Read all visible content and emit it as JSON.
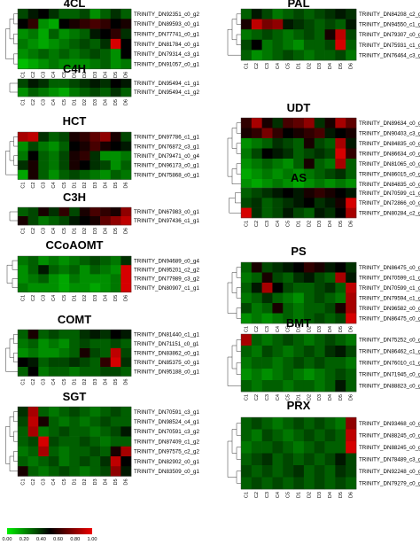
{
  "chart_data": {
    "type": "heatmap",
    "columns": [
      "C1",
      "C2",
      "C3",
      "C4",
      "C5",
      "D1",
      "D2",
      "D3",
      "D4",
      "D5",
      "D6"
    ],
    "scale": {
      "min": 0.0,
      "max": 1.0,
      "ticks": [
        "0.00",
        "0.20",
        "0.40",
        "0.60",
        "0.80",
        "1.00"
      ],
      "colors": [
        "#00ee00",
        "#000000",
        "#ee0000"
      ]
    },
    "panels": [
      {
        "title": "4CL",
        "rows": [
          "TRINITY_DN92351_c0_g2",
          "TRINITY_DN89593_c0_g1",
          "TRINITY_DN77741_c0_g1",
          "TRINITY_DN81784_c0_g1",
          "TRINITY_DN79314_c3_g1",
          "TRINITY_DN91057_c0_g1"
        ],
        "values": [
          [
            0.35,
            0.45,
            0.5,
            0.4,
            0.3,
            0.3,
            0.35,
            0.2,
            0.3,
            0.4,
            0.3
          ],
          [
            0.5,
            0.6,
            0.2,
            0.15,
            0.5,
            0.55,
            0.6,
            0.65,
            0.6,
            0.5,
            0.55
          ],
          [
            0.2,
            0.25,
            0.15,
            0.3,
            0.2,
            0.25,
            0.3,
            0.45,
            0.5,
            0.6,
            0.4
          ],
          [
            0.25,
            0.2,
            0.15,
            0.2,
            0.25,
            0.3,
            0.35,
            0.3,
            0.4,
            0.95,
            0.5
          ],
          [
            0.2,
            0.25,
            0.3,
            0.25,
            0.3,
            0.25,
            0.3,
            0.35,
            0.3,
            0.2,
            0.5
          ],
          [
            0.1,
            0.15,
            0.2,
            0.25,
            0.2,
            0.2,
            0.2,
            0.25,
            0.3,
            0.2,
            0.25
          ]
        ]
      },
      {
        "title": "C4H",
        "rows": [
          "TRINITY_DN95494_c1_g1",
          "TRINITY_DN95494_c1_g2"
        ],
        "values": [
          [
            0.35,
            0.45,
            0.4,
            0.3,
            0.3,
            0.35,
            0.4,
            0.45,
            0.4,
            0.5,
            0.45
          ],
          [
            0.2,
            0.3,
            0.25,
            0.2,
            0.15,
            0.25,
            0.3,
            0.35,
            0.3,
            0.4,
            0.3
          ]
        ]
      },
      {
        "title": "HCT",
        "rows": [
          "TRINITY_DN97786_c1_g1",
          "TRINITY_DN76872_c3_g1",
          "TRINITY_DN79471_c0_g4",
          "TRINITY_DN96173_c0_g1",
          "TRINITY_DN75868_c0_g1"
        ],
        "values": [
          [
            0.85,
            0.9,
            0.4,
            0.3,
            0.35,
            0.55,
            0.6,
            0.7,
            0.8,
            0.55,
            0.35
          ],
          [
            0.2,
            0.35,
            0.25,
            0.2,
            0.3,
            0.5,
            0.55,
            0.65,
            0.55,
            0.5,
            0.45
          ],
          [
            0.25,
            0.5,
            0.3,
            0.25,
            0.35,
            0.55,
            0.6,
            0.4,
            0.2,
            0.2,
            0.25
          ],
          [
            0.4,
            0.55,
            0.3,
            0.25,
            0.35,
            0.55,
            0.5,
            0.4,
            0.35,
            0.2,
            0.3
          ],
          [
            0.15,
            0.55,
            0.3,
            0.2,
            0.3,
            0.35,
            0.3,
            0.25,
            0.2,
            0.3,
            0.25
          ]
        ]
      },
      {
        "title": "C3H",
        "rows": [
          "TRINITY_DN67983_c0_g1",
          "TRINITY_DN97436_c1_g1"
        ],
        "values": [
          [
            0.3,
            0.35,
            0.55,
            0.4,
            0.6,
            0.35,
            0.55,
            0.65,
            0.6,
            0.55,
            0.8
          ],
          [
            0.55,
            0.35,
            0.25,
            0.3,
            0.35,
            0.45,
            0.5,
            0.55,
            0.7,
            0.8,
            0.9
          ]
        ]
      },
      {
        "title": "CCoAOMT",
        "rows": [
          "TRINITY_DN94689_c0_g4",
          "TRINITY_DN95201_c2_g2",
          "TRINITY_DN77989_c3_g2",
          "TRINITY_DN80907_c1_g1"
        ],
        "values": [
          [
            0.25,
            0.3,
            0.2,
            0.25,
            0.2,
            0.25,
            0.3,
            0.35,
            0.3,
            0.25,
            0.4
          ],
          [
            0.2,
            0.3,
            0.45,
            0.3,
            0.25,
            0.3,
            0.2,
            0.3,
            0.25,
            0.2,
            0.95
          ],
          [
            0.2,
            0.25,
            0.3,
            0.2,
            0.15,
            0.25,
            0.2,
            0.2,
            0.2,
            0.25,
            0.95
          ],
          [
            0.25,
            0.2,
            0.2,
            0.2,
            0.15,
            0.2,
            0.2,
            0.15,
            0.2,
            0.25,
            0.95
          ]
        ]
      },
      {
        "title": "COMT",
        "rows": [
          "TRINITY_DN81440_c1_g1",
          "TRINITY_DN71151_c0_g1",
          "TRINITY_DN83862_c0_g1",
          "TRINITY_DN85375_c0_g1",
          "TRINITY_DN95188_c0_g1"
        ],
        "values": [
          [
            0.3,
            0.55,
            0.3,
            0.35,
            0.3,
            0.3,
            0.4,
            0.45,
            0.4,
            0.5,
            0.45
          ],
          [
            0.25,
            0.3,
            0.2,
            0.25,
            0.2,
            0.3,
            0.35,
            0.3,
            0.3,
            0.35,
            0.3
          ],
          [
            0.2,
            0.25,
            0.2,
            0.2,
            0.25,
            0.3,
            0.55,
            0.35,
            0.3,
            0.9,
            0.35
          ],
          [
            0.5,
            0.45,
            0.3,
            0.35,
            0.35,
            0.4,
            0.35,
            0.3,
            0.6,
            0.95,
            0.4
          ],
          [
            0.3,
            0.5,
            0.25,
            0.3,
            0.3,
            0.25,
            0.3,
            0.3,
            0.35,
            0.35,
            0.3
          ]
        ]
      },
      {
        "title": "PAL",
        "rows": [
          "TRINITY_DN84208_c2_g4",
          "TRINITY_DN94550_c1_g3",
          "TRINITY_DN79307_c0_g7",
          "TRINITY_DN75931_c1_g5",
          "TRINITY_DN76464_c3_g1"
        ],
        "values": [
          [
            0.3,
            0.45,
            0.35,
            0.25,
            0.3,
            0.35,
            0.3,
            0.35,
            0.4,
            0.45,
            0.4
          ],
          [
            0.55,
            0.9,
            0.75,
            0.8,
            0.45,
            0.4,
            0.35,
            0.3,
            0.35,
            0.3,
            0.45
          ],
          [
            0.25,
            0.3,
            0.35,
            0.3,
            0.25,
            0.3,
            0.35,
            0.3,
            0.55,
            0.9,
            0.35
          ],
          [
            0.35,
            0.5,
            0.25,
            0.3,
            0.25,
            0.2,
            0.3,
            0.3,
            0.35,
            0.95,
            0.3
          ],
          [
            0.3,
            0.2,
            0.25,
            0.3,
            0.35,
            0.3,
            0.25,
            0.3,
            0.3,
            0.35,
            0.25
          ]
        ]
      },
      {
        "title": "UDT",
        "rows": [
          "TRINITY_DN89634_c0_g1",
          "TRINITY_DN90403_c3_g1",
          "TRINITY_DN84835_c0_g1",
          "TRINITY_DN86634_c0_g1",
          "TRINITY_DN81065_c0_g1",
          "TRINITY_DN86015_c0_g1",
          "TRINITY_DN84835_c0_g1"
        ],
        "values": [
          [
            0.6,
            0.85,
            0.55,
            0.4,
            0.65,
            0.7,
            0.8,
            0.4,
            0.55,
            0.85,
            0.7
          ],
          [
            0.55,
            0.6,
            0.75,
            0.6,
            0.5,
            0.55,
            0.6,
            0.65,
            0.45,
            0.5,
            0.55
          ],
          [
            0.2,
            0.25,
            0.3,
            0.4,
            0.35,
            0.3,
            0.55,
            0.35,
            0.3,
            0.85,
            0.45
          ],
          [
            0.25,
            0.35,
            0.5,
            0.45,
            0.4,
            0.3,
            0.35,
            0.4,
            0.35,
            0.95,
            0.6
          ],
          [
            0.2,
            0.25,
            0.3,
            0.25,
            0.2,
            0.3,
            0.55,
            0.3,
            0.25,
            0.85,
            0.3
          ],
          [
            0.15,
            0.2,
            0.25,
            0.2,
            0.25,
            0.2,
            0.25,
            0.3,
            0.35,
            0.4,
            0.3
          ],
          [
            0.2,
            0.15,
            0.2,
            0.25,
            0.2,
            0.15,
            0.2,
            0.25,
            0.2,
            0.25,
            0.2
          ]
        ]
      },
      {
        "title": "AS",
        "rows": [
          "TRINITY_DN70599_c1_g5",
          "TRINITY_DN72866_c0_g2",
          "TRINITY_DN80284_c2_g2"
        ],
        "values": [
          [
            0.3,
            0.35,
            0.4,
            0.45,
            0.5,
            0.45,
            0.55,
            0.6,
            0.55,
            0.5,
            0.45
          ],
          [
            0.35,
            0.4,
            0.3,
            0.35,
            0.4,
            0.45,
            0.5,
            0.4,
            0.45,
            0.55,
            0.95
          ],
          [
            0.95,
            0.4,
            0.3,
            0.35,
            0.45,
            0.35,
            0.3,
            0.45,
            0.4,
            0.5,
            0.85
          ]
        ]
      },
      {
        "title": "PS",
        "rows": [
          "TRINITY_DN86475_c0_g1",
          "TRINITY_DN70599_c1_g6",
          "TRINITY_DN70599_c1_g3",
          "TRINITY_DN79594_c1_g2",
          "TRINITY_DN96582_c0_g3",
          "TRINITY_DN86475_c0_g1"
        ],
        "values": [
          [
            0.3,
            0.55,
            0.35,
            0.4,
            0.45,
            0.5,
            0.6,
            0.55,
            0.45,
            0.5,
            0.4
          ],
          [
            0.25,
            0.3,
            0.55,
            0.35,
            0.3,
            0.4,
            0.45,
            0.35,
            0.3,
            0.85,
            0.45
          ],
          [
            0.3,
            0.45,
            0.85,
            0.5,
            0.35,
            0.3,
            0.3,
            0.35,
            0.4,
            0.3,
            0.9
          ],
          [
            0.25,
            0.3,
            0.4,
            0.3,
            0.25,
            0.2,
            0.3,
            0.35,
            0.3,
            0.25,
            0.85
          ],
          [
            0.35,
            0.25,
            0.3,
            0.55,
            0.3,
            0.25,
            0.3,
            0.3,
            0.35,
            0.55,
            0.85
          ],
          [
            0.2,
            0.25,
            0.2,
            0.25,
            0.3,
            0.25,
            0.3,
            0.35,
            0.3,
            0.35,
            0.95
          ]
        ]
      },
      {
        "title": "BMT",
        "rows": [
          "TRINITY_DN75252_c0_g2",
          "TRINITY_DN86462_c1_g1",
          "TRINITY_DN76010_c1_g7",
          "TRINITY_DN71945_c0_g1",
          "TRINITY_DN88823_c0_g1"
        ],
        "values": [
          [
            0.85,
            0.3,
            0.25,
            0.3,
            0.35,
            0.3,
            0.25,
            0.3,
            0.35,
            0.3,
            0.25
          ],
          [
            0.3,
            0.25,
            0.35,
            0.3,
            0.25,
            0.3,
            0.35,
            0.3,
            0.4,
            0.45,
            0.35
          ],
          [
            0.25,
            0.3,
            0.3,
            0.25,
            0.3,
            0.35,
            0.3,
            0.35,
            0.3,
            0.3,
            0.25
          ],
          [
            0.2,
            0.25,
            0.2,
            0.25,
            0.3,
            0.25,
            0.2,
            0.25,
            0.3,
            0.35,
            0.3
          ],
          [
            0.3,
            0.25,
            0.3,
            0.3,
            0.25,
            0.3,
            0.3,
            0.25,
            0.3,
            0.45,
            0.3
          ]
        ]
      },
      {
        "title": "SGT",
        "rows": [
          "TRINITY_DN70591_c3_g1",
          "TRINITY_DN98524_c4_g1",
          "TRINITY_DN70591_c3_g2",
          "TRINITY_DN87409_c1_g2",
          "TRINITY_DN97575_c2_g2",
          "TRINITY_DN82902_c0_g1",
          "TRINITY_DN83509_c0_g1"
        ],
        "values": [
          [
            0.4,
            0.85,
            0.3,
            0.25,
            0.3,
            0.35,
            0.3,
            0.25,
            0.3,
            0.35,
            0.3
          ],
          [
            0.35,
            0.9,
            0.55,
            0.3,
            0.25,
            0.3,
            0.25,
            0.3,
            0.35,
            0.3,
            0.3
          ],
          [
            0.3,
            0.85,
            0.25,
            0.3,
            0.35,
            0.3,
            0.3,
            0.25,
            0.3,
            0.35,
            0.45
          ],
          [
            0.3,
            0.35,
            0.95,
            0.35,
            0.3,
            0.3,
            0.35,
            0.3,
            0.25,
            0.3,
            0.3
          ],
          [
            0.25,
            0.3,
            0.85,
            0.3,
            0.25,
            0.3,
            0.3,
            0.35,
            0.3,
            0.55,
            0.85
          ],
          [
            0.3,
            0.25,
            0.3,
            0.35,
            0.25,
            0.3,
            0.35,
            0.3,
            0.4,
            0.9,
            0.5
          ],
          [
            0.55,
            0.3,
            0.25,
            0.3,
            0.35,
            0.3,
            0.25,
            0.3,
            0.35,
            0.8,
            0.45
          ]
        ]
      },
      {
        "title": "PRX",
        "rows": [
          "TRINITY_DN93468_c0_g1",
          "TRINITY_DN88245_c0_g1",
          "TRINITY_DN88245_c0_g3",
          "TRINITY_DN78489_c3_g1",
          "TRINITY_DN92248_c0_g1",
          "TRINITY_DN79279_c0_g1"
        ],
        "values": [
          [
            0.3,
            0.35,
            0.3,
            0.25,
            0.3,
            0.35,
            0.3,
            0.35,
            0.3,
            0.25,
            0.8
          ],
          [
            0.3,
            0.25,
            0.35,
            0.3,
            0.25,
            0.3,
            0.35,
            0.3,
            0.35,
            0.3,
            0.9
          ],
          [
            0.25,
            0.3,
            0.3,
            0.35,
            0.3,
            0.25,
            0.3,
            0.35,
            0.3,
            0.3,
            0.95
          ],
          [
            0.3,
            0.35,
            0.4,
            0.3,
            0.35,
            0.3,
            0.35,
            0.3,
            0.35,
            0.45,
            0.35
          ],
          [
            0.35,
            0.3,
            0.35,
            0.3,
            0.35,
            0.4,
            0.3,
            0.35,
            0.3,
            0.4,
            0.35
          ],
          [
            0.3,
            0.35,
            0.3,
            0.35,
            0.3,
            0.35,
            0.3,
            0.35,
            0.3,
            0.35,
            0.3
          ]
        ]
      }
    ]
  }
}
